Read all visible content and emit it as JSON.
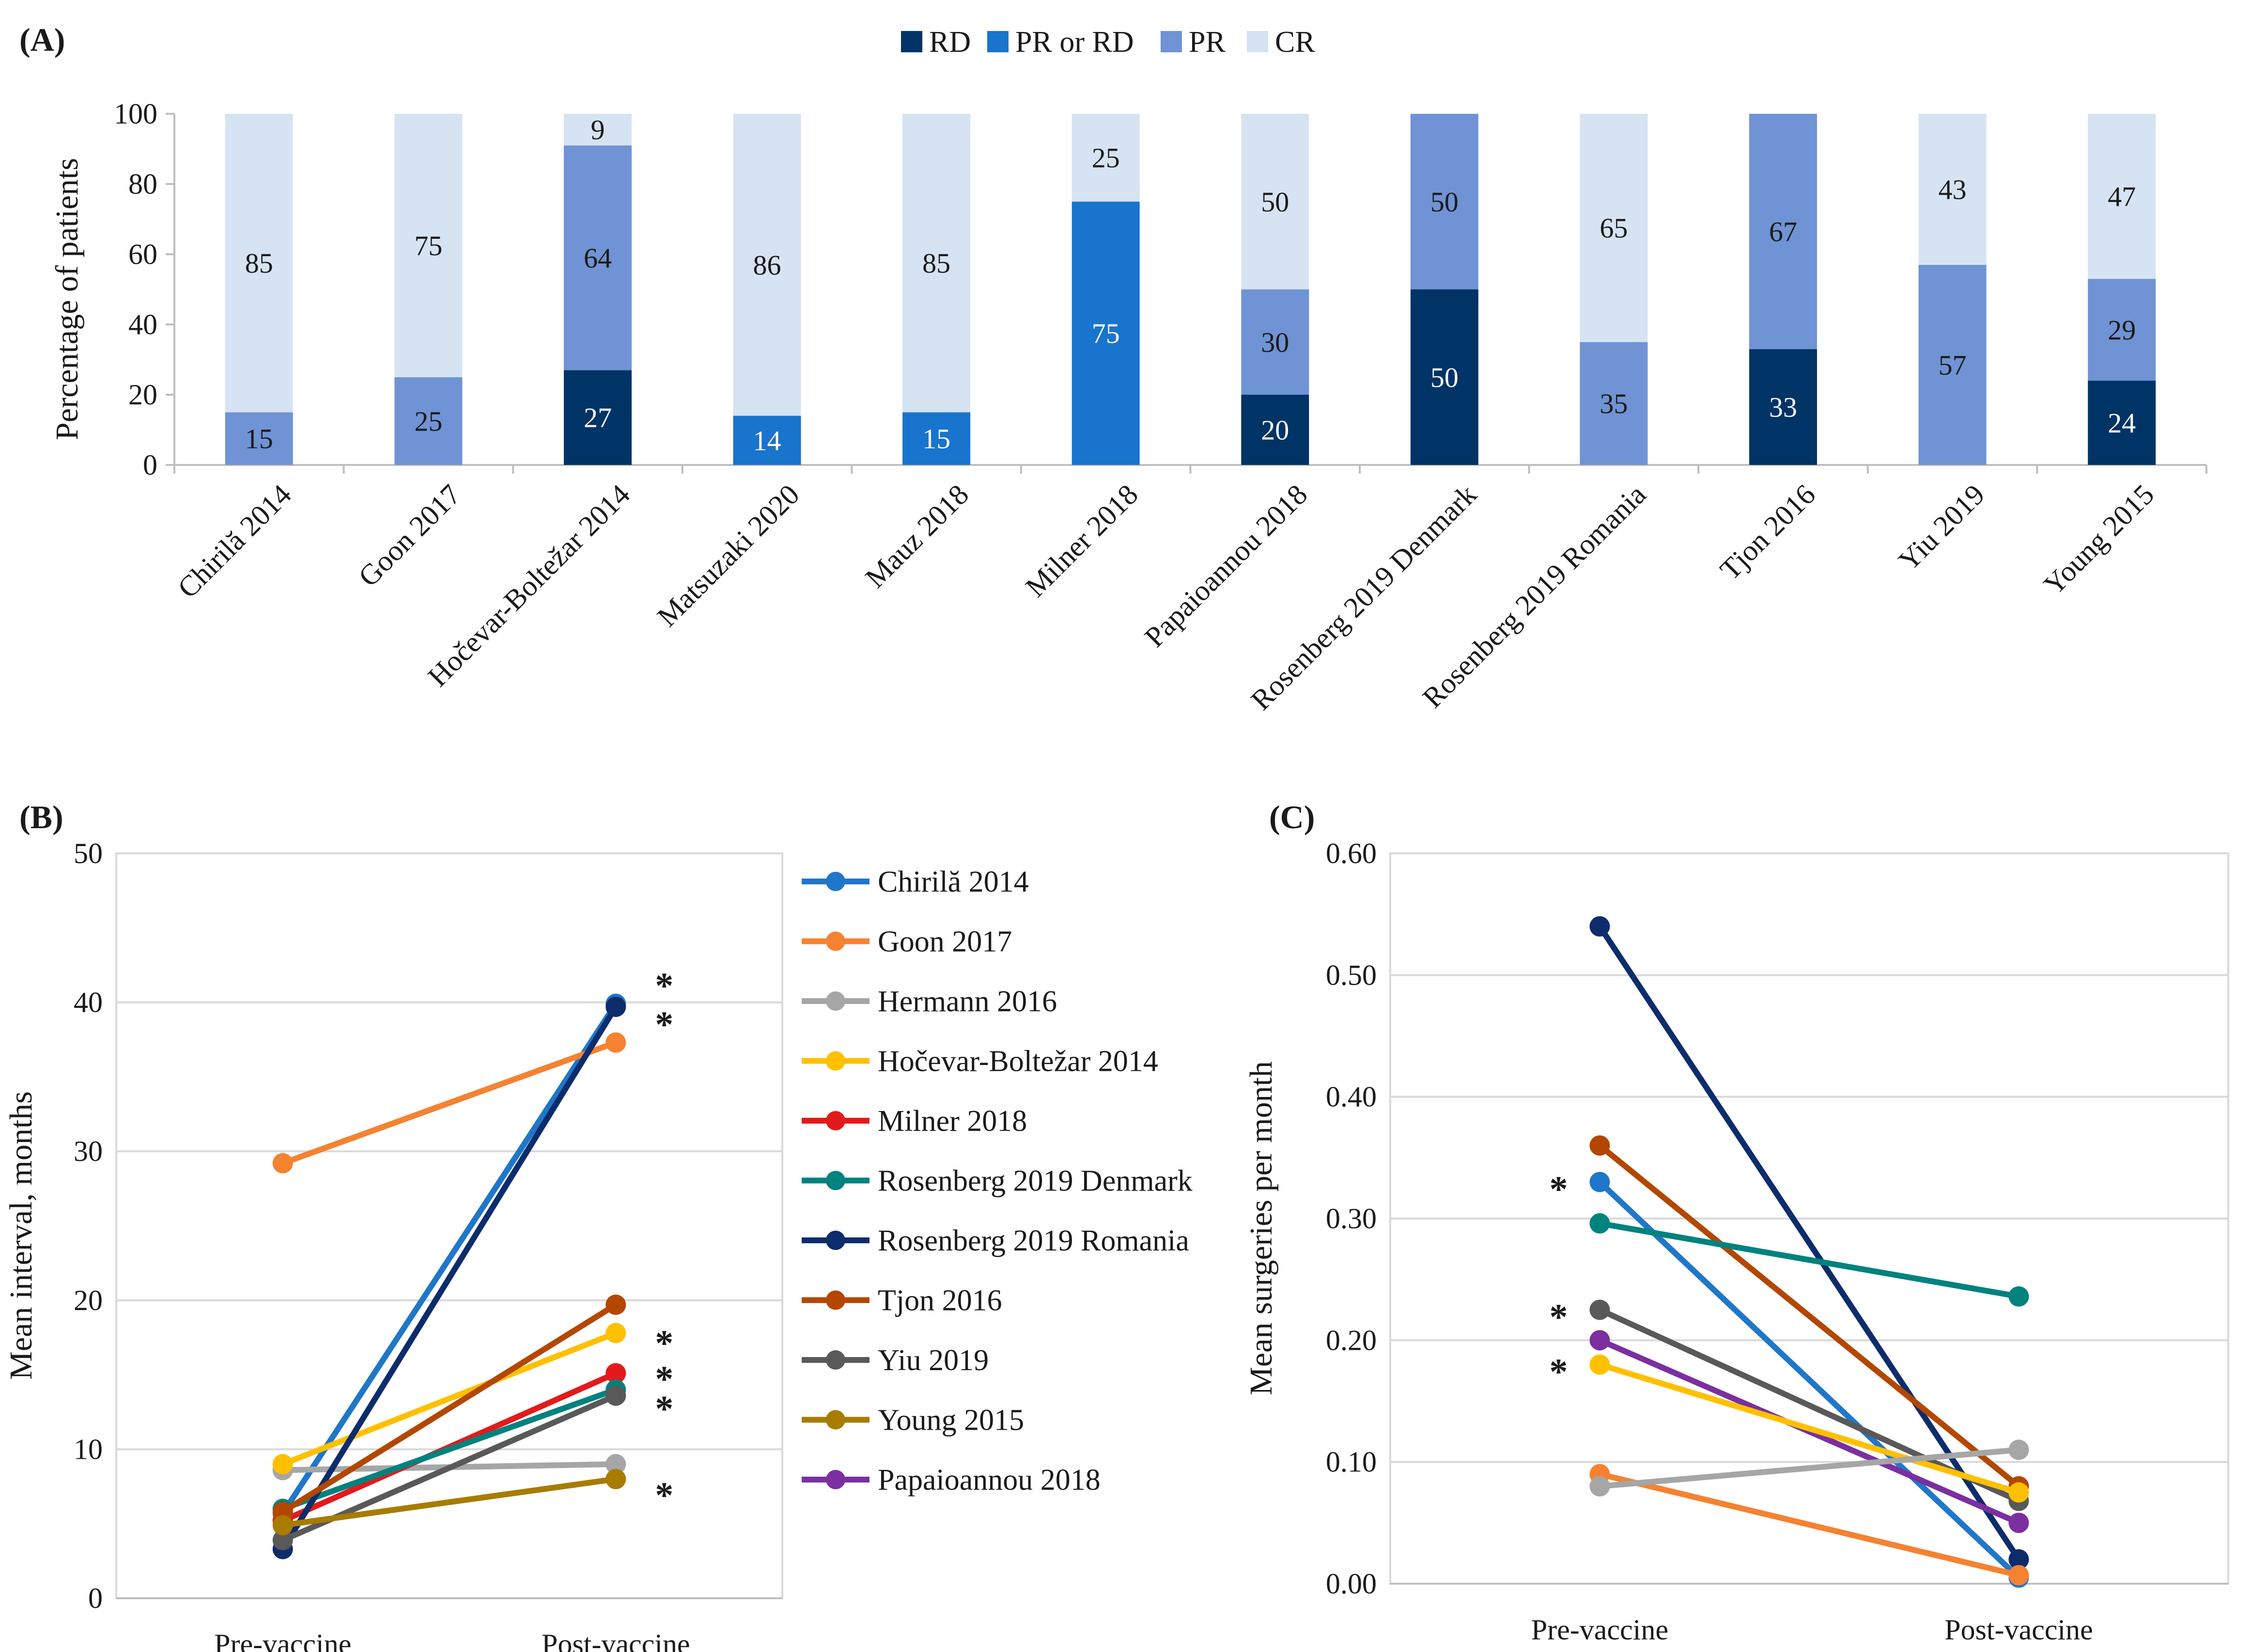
{
  "panels": {
    "a": {
      "label": "(A)"
    },
    "b": {
      "label": "(B)"
    },
    "c": {
      "label": "(C)"
    }
  },
  "chart_data": [
    {
      "type": "bar",
      "stacked": true,
      "panel": "(A)",
      "ylabel": "Percentage of patients",
      "ylim": [
        0,
        100
      ],
      "yticks": [
        0,
        20,
        40,
        60,
        80,
        100
      ],
      "legend_position": "top-center",
      "categories": [
        "Chirilă 2014",
        "Goon 2017",
        "Hočevar-Boltežar 2014",
        "Matsuzaki 2020",
        "Mauz 2018",
        "Milner 2018",
        "Papaioannou 2018",
        "Rosenberg 2019 Denmark",
        "Rosenberg 2019 Romania",
        "Tjon 2016",
        "Yiu 2019",
        "Young 2015"
      ],
      "series": [
        {
          "name": "RD",
          "color": "#003366",
          "values": [
            0,
            0,
            27,
            0,
            0,
            0,
            20,
            50,
            0,
            33,
            0,
            24
          ]
        },
        {
          "name": "PR or RD",
          "color": "#1874cd",
          "values": [
            0,
            0,
            0,
            14,
            15,
            75,
            0,
            0,
            0,
            0,
            0,
            0
          ]
        },
        {
          "name": "PR",
          "color": "#6f93d4",
          "values": [
            15,
            25,
            64,
            0,
            0,
            0,
            30,
            50,
            35,
            67,
            57,
            29
          ]
        },
        {
          "name": "CR",
          "color": "#d6e3f2",
          "values": [
            85,
            75,
            9,
            86,
            85,
            25,
            50,
            0,
            65,
            0,
            43,
            47
          ]
        }
      ]
    },
    {
      "type": "line",
      "panel": "(B)",
      "ylabel": "Mean interval, months",
      "ylim": [
        0,
        50
      ],
      "yticks": [
        0,
        10,
        20,
        30,
        40,
        50
      ],
      "categories": [
        "Pre-vaccine",
        "Post-vaccine"
      ],
      "legend_position": "right",
      "series": [
        {
          "name": "Chirilă 2014",
          "color": "#1f77c9",
          "values": [
            5.7,
            39.9
          ]
        },
        {
          "name": "Goon 2017",
          "color": "#f58231",
          "values": [
            29.2,
            37.3
          ]
        },
        {
          "name": "Hermann 2016",
          "color": "#a6a6a6",
          "values": [
            8.6,
            9.0
          ]
        },
        {
          "name": "Hočevar-Boltežar 2014",
          "color": "#ffc000",
          "values": [
            9.0,
            17.8
          ]
        },
        {
          "name": "Milner 2018",
          "color": "#e31a1c",
          "values": [
            5.2,
            15.1
          ]
        },
        {
          "name": "Rosenberg 2019 Denmark",
          "color": "#00827f",
          "values": [
            6.0,
            14.0
          ]
        },
        {
          "name": "Rosenberg 2019 Romania",
          "color": "#0d2c6c",
          "values": [
            3.3,
            39.7
          ]
        },
        {
          "name": "Tjon 2016",
          "color": "#b34700",
          "values": [
            5.8,
            19.7
          ]
        },
        {
          "name": "Yiu 2019",
          "color": "#595959",
          "values": [
            3.9,
            13.6
          ]
        },
        {
          "name": "Young 2015",
          "color": "#a77c00",
          "values": [
            4.9,
            8.0
          ]
        }
      ],
      "legend_extra": {
        "name": "Papaioannou 2018",
        "color": "#7b2fa0"
      },
      "significance_markers": [
        {
          "text": "*",
          "value": 41.6
        },
        {
          "text": "*",
          "value": 39.0
        },
        {
          "text": "*",
          "value": 17.6
        },
        {
          "text": "*",
          "value": 15.2
        },
        {
          "text": "*",
          "value": 13.2
        },
        {
          "text": "*",
          "value": 7.4
        }
      ]
    },
    {
      "type": "line",
      "panel": "(C)",
      "ylabel": "Mean surgeries per month",
      "ylim": [
        0,
        0.6
      ],
      "yticks": [
        "0.00",
        "0.10",
        "0.20",
        "0.30",
        "0.40",
        "0.50",
        "0.60"
      ],
      "categories": [
        "Pre-vaccine",
        "Post-vaccine"
      ],
      "series": [
        {
          "name": "Rosenberg 2019 Romania",
          "color": "#0d2c6c",
          "values": [
            0.54,
            0.02
          ]
        },
        {
          "name": "Tjon 2016",
          "color": "#b34700",
          "values": [
            0.36,
            0.08
          ]
        },
        {
          "name": "Chirilă 2014",
          "color": "#1f77c9",
          "values": [
            0.33,
            0.005
          ]
        },
        {
          "name": "Rosenberg 2019 Denmark",
          "color": "#00827f",
          "values": [
            0.296,
            0.236
          ]
        },
        {
          "name": "Yiu 2019",
          "color": "#595959",
          "values": [
            0.225,
            0.068
          ]
        },
        {
          "name": "Papaioannou 2018",
          "color": "#7b2fa0",
          "values": [
            0.2,
            0.05
          ]
        },
        {
          "name": "Hočevar-Boltežar 2014",
          "color": "#ffc000",
          "values": [
            0.18,
            0.075
          ]
        },
        {
          "name": "Goon 2017",
          "color": "#f58231",
          "values": [
            0.09,
            0.007
          ]
        },
        {
          "name": "Hermann 2016",
          "color": "#a6a6a6",
          "values": [
            0.08,
            0.11
          ]
        }
      ],
      "significance_markers": [
        {
          "text": "*",
          "value": 0.33
        },
        {
          "text": "*",
          "value": 0.225
        },
        {
          "text": "*",
          "value": 0.18
        }
      ]
    }
  ]
}
